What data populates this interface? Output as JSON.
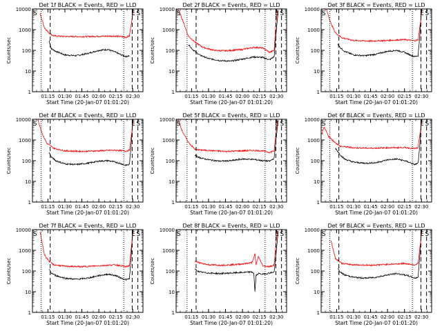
{
  "figure": {
    "xlabel": "Start Time (20-Jan-07 01:01:20)",
    "ylabel": "Counts/sec",
    "time_ticks": [
      "01:15",
      "01:30",
      "01:45",
      "02:00",
      "02:15",
      "02:30"
    ],
    "ytick_labels": [
      "1",
      "10",
      "100",
      "1000",
      "10000"
    ],
    "colors": {
      "events": "#000000",
      "lld": "#ff0000",
      "axis": "#000000"
    }
  },
  "chart_data": [
    {
      "type": "line",
      "title": "Det 1f BLACK = Events, RED = LLD",
      "xlabel": "Start Time (20-Jan-07 01:01:20)",
      "ylabel": "Counts/sec",
      "xlim": [
        "01:01:20",
        "02:39:00"
      ],
      "ylim": [
        1,
        10000
      ],
      "yscale": "log",
      "markers": [
        {
          "label": "S",
          "time": "01:01:50"
        },
        {
          "label": "E",
          "time": "02:28:40"
        },
        {
          "label": "S",
          "time": "02:33:10"
        }
      ],
      "vlines_dotted": [
        "01:09:00",
        "02:22:00"
      ],
      "vlines_dashed": [
        "01:17:00",
        "02:29:30",
        "02:34:30"
      ],
      "series": [
        {
          "name": "Events",
          "color": "#000000",
          "t": [
            "01:16:00",
            "01:18:00",
            "01:22:00",
            "01:30:00",
            "01:40:00",
            "01:50:00",
            "02:00:00",
            "02:08:00",
            "02:15:00",
            "02:20:00",
            "02:24:00",
            "02:27:00"
          ],
          "y": [
            300,
            120,
            90,
            60,
            55,
            70,
            100,
            110,
            80,
            60,
            50,
            55
          ]
        },
        {
          "name": "LLD",
          "color": "#ff0000",
          "t": [
            "01:08:00",
            "01:12:00",
            "01:16:00",
            "01:20:00",
            "01:30:00",
            "01:45:00",
            "02:00:00",
            "02:15:00",
            "02:24:00",
            "02:27:00",
            "02:29:00",
            "02:30:30"
          ],
          "y": [
            6000,
            1200,
            700,
            500,
            470,
            460,
            480,
            490,
            430,
            500,
            2500,
            10000
          ]
        }
      ]
    },
    {
      "type": "line",
      "title": "Det 2f BLACK = Events, RED = LLD",
      "xlabel": "Start Time (20-Jan-07 01:01:20)",
      "ylabel": "Counts/sec",
      "xlim": [
        "01:01:20",
        "02:39:00"
      ],
      "ylim": [
        1,
        10000
      ],
      "yscale": "log",
      "markers": [
        {
          "label": "S",
          "time": "01:01:50"
        },
        {
          "label": "E",
          "time": "02:28:40"
        },
        {
          "label": "S",
          "time": "02:33:10"
        }
      ],
      "vlines_dotted": [
        "01:11:00",
        "02:20:00"
      ],
      "vlines_dashed": [
        "01:19:00",
        "02:29:30",
        "02:34:30"
      ],
      "series": [
        {
          "name": "Events",
          "color": "#000000",
          "t": [
            "01:12:00",
            "01:16:00",
            "01:22:00",
            "01:30:00",
            "01:40:00",
            "01:50:00",
            "02:00:00",
            "02:10:00",
            "02:18:00",
            "02:24:00",
            "02:28:00",
            "02:30:00",
            "02:31:30"
          ],
          "y": [
            200,
            110,
            60,
            40,
            32,
            30,
            38,
            48,
            45,
            35,
            50,
            1000,
            8000
          ]
        },
        {
          "name": "LLD",
          "color": "#ff0000",
          "t": [
            "01:03:00",
            "01:07:00",
            "01:12:00",
            "01:18:00",
            "01:25:00",
            "01:35:00",
            "01:45:00",
            "02:00:00",
            "02:10:00",
            "02:18:00",
            "02:24:00",
            "02:28:00",
            "02:29:30",
            "02:31:00"
          ],
          "y": [
            10000,
            3000,
            500,
            250,
            140,
            100,
            95,
            110,
            140,
            130,
            80,
            100,
            2000,
            9000
          ]
        }
      ]
    },
    {
      "type": "line",
      "title": "Det 3f BLACK = Events, RED = LLD",
      "xlabel": "Start Time (20-Jan-07 01:01:20)",
      "ylabel": "Counts/sec",
      "xlim": [
        "01:01:20",
        "02:39:00"
      ],
      "ylim": [
        1,
        10000
      ],
      "yscale": "log",
      "markers": [
        {
          "label": "S",
          "time": "01:01:50"
        },
        {
          "label": "E",
          "time": "02:28:40"
        },
        {
          "label": "S",
          "time": "02:33:10"
        }
      ],
      "vlines_dotted": [
        "01:09:00",
        "02:22:00"
      ],
      "vlines_dashed": [
        "01:17:00",
        "02:29:30",
        "02:34:30"
      ],
      "series": [
        {
          "name": "Events",
          "color": "#000000",
          "t": [
            "01:16:00",
            "01:18:00",
            "01:22:00",
            "01:30:00",
            "01:40:00",
            "01:50:00",
            "02:00:00",
            "02:08:00",
            "02:15:00",
            "02:20:00",
            "02:24:00",
            "02:27:00",
            "02:28:30",
            "02:30:00"
          ],
          "y": [
            200,
            140,
            90,
            60,
            55,
            65,
            90,
            100,
            80,
            60,
            50,
            55,
            500,
            9000
          ]
        },
        {
          "name": "LLD",
          "color": "#ff0000",
          "t": [
            "01:06:00",
            "01:10:00",
            "01:14:00",
            "01:20:00",
            "01:30:00",
            "01:45:00",
            "02:00:00",
            "02:15:00",
            "02:24:00",
            "02:27:00",
            "02:29:00",
            "02:30:30"
          ],
          "y": [
            10000,
            2000,
            700,
            400,
            300,
            280,
            300,
            330,
            290,
            320,
            2000,
            10000
          ]
        }
      ]
    },
    {
      "type": "line",
      "title": "Det 4f BLACK = Events, RED = LLD",
      "xlabel": "Start Time (20-Jan-07 01:01:20)",
      "ylabel": "Counts/sec",
      "xlim": [
        "01:01:20",
        "02:39:00"
      ],
      "ylim": [
        1,
        10000
      ],
      "yscale": "log",
      "markers": [
        {
          "label": "S",
          "time": "01:01:50"
        },
        {
          "label": "E",
          "time": "02:28:40"
        },
        {
          "label": "S",
          "time": "02:33:10"
        }
      ],
      "vlines_dotted": [
        "01:09:00",
        "02:22:00"
      ],
      "vlines_dashed": [
        "01:17:00",
        "02:29:30",
        "02:34:30"
      ],
      "series": [
        {
          "name": "Events",
          "color": "#000000",
          "t": [
            "01:16:00",
            "01:18:00",
            "01:22:00",
            "01:30:00",
            "01:40:00",
            "01:50:00",
            "02:00:00",
            "02:08:00",
            "02:15:00",
            "02:20:00",
            "02:24:00",
            "02:27:00",
            "02:28:30",
            "02:30:00"
          ],
          "y": [
            250,
            150,
            100,
            70,
            65,
            75,
            95,
            100,
            85,
            70,
            60,
            65,
            500,
            9000
          ]
        },
        {
          "name": "LLD",
          "color": "#ff0000",
          "t": [
            "01:06:00",
            "01:10:00",
            "01:14:00",
            "01:20:00",
            "01:30:00",
            "01:45:00",
            "02:00:00",
            "02:15:00",
            "02:24:00",
            "02:27:00",
            "02:29:00",
            "02:30:30"
          ],
          "y": [
            10000,
            2000,
            700,
            400,
            300,
            280,
            300,
            320,
            290,
            320,
            2000,
            10000
          ]
        }
      ]
    },
    {
      "type": "line",
      "title": "Det 5f BLACK = Events, RED = LLD",
      "xlabel": "Start Time (20-Jan-07 01:01:20)",
      "ylabel": "Counts/sec",
      "xlim": [
        "01:01:20",
        "02:39:00"
      ],
      "ylim": [
        1,
        10000
      ],
      "yscale": "log",
      "markers": [
        {
          "label": "S",
          "time": "01:01:50"
        },
        {
          "label": "E",
          "time": "02:28:40"
        },
        {
          "label": "S",
          "time": "02:33:10"
        }
      ],
      "vlines_dotted": [
        "01:11:00",
        "02:20:00"
      ],
      "vlines_dashed": [
        "01:19:00",
        "02:29:30",
        "02:34:30"
      ],
      "series": [
        {
          "name": "Events",
          "color": "#000000",
          "t": [
            "01:18:00",
            "01:22:00",
            "01:30:00",
            "01:40:00",
            "01:50:00",
            "02:00:00",
            "02:10:00",
            "02:18:00",
            "02:24:00",
            "02:28:00",
            "02:30:00",
            "02:31:30"
          ],
          "y": [
            180,
            140,
            110,
            95,
            100,
            120,
            115,
            100,
            95,
            130,
            1500,
            9000
          ]
        },
        {
          "name": "LLD",
          "color": "#ff0000",
          "t": [
            "01:03:00",
            "01:07:00",
            "01:12:00",
            "01:18:00",
            "01:25:00",
            "01:35:00",
            "01:45:00",
            "02:00:00",
            "02:10:00",
            "02:18:00",
            "02:24:00",
            "02:28:00",
            "02:29:30",
            "02:31:00"
          ],
          "y": [
            10000,
            2500,
            800,
            350,
            320,
            300,
            280,
            300,
            310,
            300,
            250,
            300,
            2000,
            9000
          ]
        }
      ]
    },
    {
      "type": "line",
      "title": "Det 6f BLACK = Events, RED = LLD",
      "xlabel": "Start Time (20-Jan-07 01:01:20)",
      "ylabel": "Counts/sec",
      "xlim": [
        "01:01:20",
        "02:39:00"
      ],
      "ylim": [
        1,
        10000
      ],
      "yscale": "log",
      "markers": [
        {
          "label": "S",
          "time": "01:01:50"
        },
        {
          "label": "E",
          "time": "02:28:40"
        },
        {
          "label": "S",
          "time": "02:33:10"
        }
      ],
      "vlines_dotted": [
        "01:09:00",
        "02:22:00"
      ],
      "vlines_dashed": [
        "01:17:00",
        "02:29:30",
        "02:34:30"
      ],
      "series": [
        {
          "name": "Events",
          "color": "#000000",
          "t": [
            "01:14:00",
            "01:18:00",
            "01:22:00",
            "01:30:00",
            "01:40:00",
            "01:50:00",
            "02:00:00",
            "02:08:00",
            "02:15:00",
            "02:20:00",
            "02:24:00",
            "02:27:00",
            "02:28:30",
            "02:30:00"
          ],
          "y": [
            400,
            200,
            120,
            85,
            75,
            80,
            110,
            120,
            100,
            80,
            65,
            75,
            500,
            9000
          ]
        },
        {
          "name": "LLD",
          "color": "#ff0000",
          "t": [
            "01:02:00",
            "01:04:00",
            "01:06:00",
            "01:08:00",
            "01:12:00",
            "01:18:00",
            "01:30:00",
            "01:45:00",
            "02:00:00",
            "02:15:00",
            "02:24:00",
            "02:27:00",
            "02:29:00",
            "02:30:30"
          ],
          "y": [
            2000,
            4000,
            2500,
            1500,
            900,
            500,
            420,
            400,
            420,
            430,
            380,
            420,
            2500,
            10000
          ]
        }
      ]
    },
    {
      "type": "line",
      "title": "Det 7f BLACK = Events, RED = LLD",
      "xlabel": "Start Time (20-Jan-07 01:01:20)",
      "ylabel": "Counts/sec",
      "xlim": [
        "01:01:20",
        "02:39:00"
      ],
      "ylim": [
        1,
        10000
      ],
      "yscale": "log",
      "markers": [
        {
          "label": "S",
          "time": "01:01:50"
        },
        {
          "label": "E",
          "time": "02:28:40"
        },
        {
          "label": "S",
          "time": "02:33:10"
        }
      ],
      "vlines_dotted": [
        "01:09:00",
        "02:22:00"
      ],
      "vlines_dashed": [
        "01:17:00",
        "02:29:30",
        "02:34:30"
      ],
      "series": [
        {
          "name": "Events",
          "color": "#000000",
          "t": [
            "01:16:00",
            "01:18:00",
            "01:22:00",
            "01:30:00",
            "01:40:00",
            "01:50:00",
            "02:00:00",
            "02:08:00",
            "02:15:00",
            "02:20:00",
            "02:24:00",
            "02:27:00",
            "02:28:30",
            "02:30:00"
          ],
          "y": [
            120,
            80,
            60,
            45,
            40,
            45,
            60,
            70,
            60,
            45,
            38,
            42,
            400,
            9000
          ]
        },
        {
          "name": "LLD",
          "color": "#ff0000",
          "t": [
            "01:08:00",
            "01:12:00",
            "01:16:00",
            "01:20:00",
            "01:30:00",
            "01:45:00",
            "02:00:00",
            "02:15:00",
            "02:24:00",
            "02:27:00",
            "02:29:00",
            "02:30:30"
          ],
          "y": [
            8000,
            600,
            300,
            200,
            170,
            160,
            180,
            200,
            160,
            180,
            2000,
            10000
          ]
        }
      ]
    },
    {
      "type": "line",
      "title": "Det 8f BLACK = Events, RED = LLD",
      "xlabel": "Start Time (20-Jan-07 01:01:20)",
      "ylabel": "Counts/sec",
      "xlim": [
        "01:01:20",
        "02:39:00"
      ],
      "ylim": [
        1,
        10000
      ],
      "yscale": "log",
      "markers": [
        {
          "label": "S",
          "time": "01:01:50"
        },
        {
          "label": "E",
          "time": "02:28:40"
        },
        {
          "label": "S",
          "time": "02:33:10"
        }
      ],
      "vlines_dotted": [
        "01:11:00",
        "02:20:00"
      ],
      "vlines_dashed": [
        "01:19:00",
        "02:29:30",
        "02:34:30"
      ],
      "series": [
        {
          "name": "Events",
          "color": "#000000",
          "t": [
            "01:18:00",
            "01:22:00",
            "01:30:00",
            "01:40:00",
            "01:50:00",
            "02:00:00",
            "02:08:00",
            "02:10:00",
            "02:11:00",
            "02:12:00",
            "02:14:00",
            "02:18:00",
            "02:24:00",
            "02:28:00",
            "02:30:00",
            "02:31:30"
          ],
          "y": [
            120,
            90,
            80,
            75,
            80,
            85,
            90,
            80,
            10,
            60,
            75,
            70,
            80,
            90,
            1000,
            8000
          ]
        },
        {
          "name": "LLD",
          "color": "#ff0000",
          "t": [
            "01:18:00",
            "01:22:00",
            "01:30:00",
            "01:40:00",
            "01:50:00",
            "02:00:00",
            "02:08:00",
            "02:10:00",
            "02:11:00",
            "02:12:00",
            "02:14:00",
            "02:18:00",
            "02:24:00",
            "02:28:00",
            "02:29:30",
            "02:31:00"
          ],
          "y": [
            300,
            250,
            200,
            190,
            200,
            220,
            250,
            400,
            700,
            200,
            500,
            180,
            160,
            200,
            2000,
            9000
          ]
        }
      ]
    },
    {
      "type": "line",
      "title": "Det 9f BLACK = Events, RED = LLD",
      "xlabel": "Start Time (20-Jan-07 01:01:20)",
      "ylabel": "Counts/sec",
      "xlim": [
        "01:01:20",
        "02:39:00"
      ],
      "ylim": [
        1,
        10000
      ],
      "yscale": "log",
      "markers": [
        {
          "label": "S",
          "time": "01:01:50"
        },
        {
          "label": "E",
          "time": "02:28:40"
        },
        {
          "label": "S",
          "time": "02:33:10"
        }
      ],
      "vlines_dotted": [
        "01:09:00",
        "02:22:00"
      ],
      "vlines_dashed": [
        "01:17:00",
        "02:29:30",
        "02:34:30"
      ],
      "series": [
        {
          "name": "Events",
          "color": "#000000",
          "t": [
            "01:16:00",
            "01:18:00",
            "01:22:00",
            "01:30:00",
            "01:40:00",
            "01:50:00",
            "02:00:00",
            "02:08:00",
            "02:15:00",
            "02:20:00",
            "02:24:00",
            "02:27:00",
            "02:28:30",
            "02:30:00"
          ],
          "y": [
            140,
            90,
            65,
            50,
            45,
            50,
            65,
            75,
            65,
            55,
            45,
            50,
            500,
            9000
          ]
        },
        {
          "name": "LLD",
          "color": "#ff0000",
          "t": [
            "01:10:00",
            "01:14:00",
            "01:20:00",
            "01:30:00",
            "01:45:00",
            "02:00:00",
            "02:15:00",
            "02:24:00",
            "02:27:00",
            "02:29:00",
            "02:30:30"
          ],
          "y": [
            3000,
            400,
            230,
            200,
            190,
            210,
            230,
            200,
            230,
            2000,
            10000
          ]
        }
      ]
    }
  ]
}
